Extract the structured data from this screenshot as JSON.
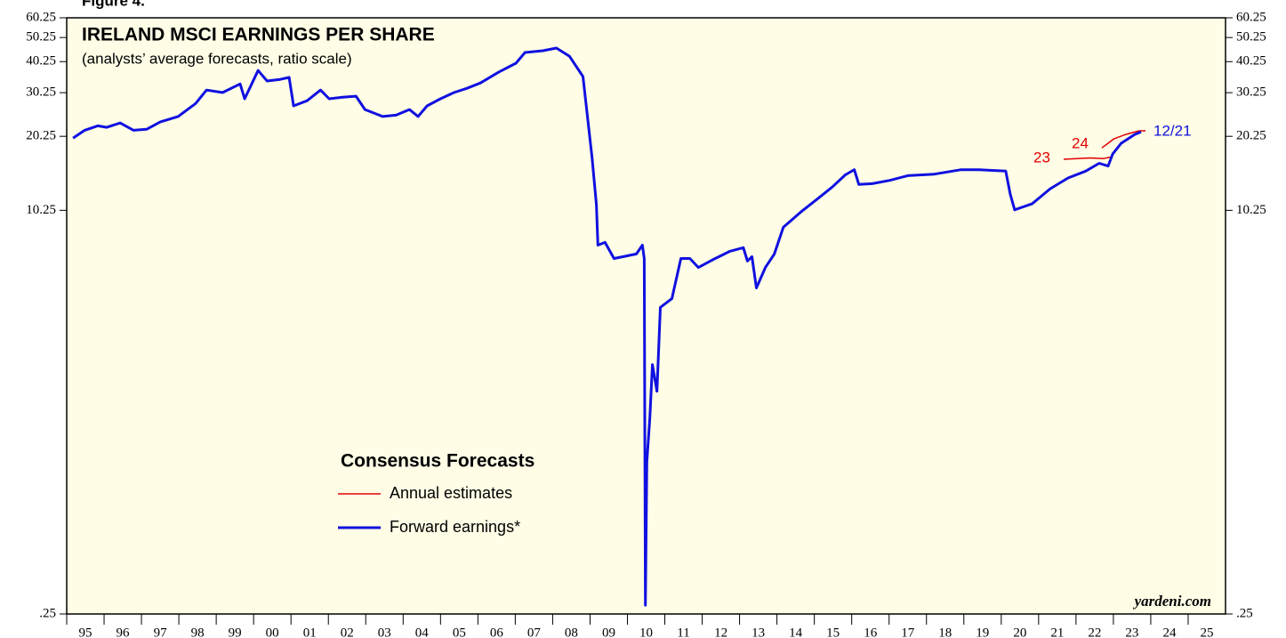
{
  "chart_data": {
    "type": "line",
    "figure_label": "Figure 4.",
    "title": "IRELAND MSCI EARNINGS PER SHARE",
    "subtitle": "(analysts’ average forecasts, ratio scale)",
    "legend_title": "Consensus Forecasts",
    "source": "yardeni.com",
    "log_scale": true,
    "background": "#fffde6",
    "xlim": [
      1995,
      2026
    ],
    "xticks": [
      {
        "value": 1995.5,
        "label": "95"
      },
      {
        "value": 1996.5,
        "label": "96"
      },
      {
        "value": 1997.5,
        "label": "97"
      },
      {
        "value": 1998.5,
        "label": "98"
      },
      {
        "value": 1999.5,
        "label": "99"
      },
      {
        "value": 2000.5,
        "label": "00"
      },
      {
        "value": 2001.5,
        "label": "01"
      },
      {
        "value": 2002.5,
        "label": "02"
      },
      {
        "value": 2003.5,
        "label": "03"
      },
      {
        "value": 2004.5,
        "label": "04"
      },
      {
        "value": 2005.5,
        "label": "05"
      },
      {
        "value": 2006.5,
        "label": "06"
      },
      {
        "value": 2007.5,
        "label": "07"
      },
      {
        "value": 2008.5,
        "label": "08"
      },
      {
        "value": 2009.5,
        "label": "09"
      },
      {
        "value": 2010.5,
        "label": "10"
      },
      {
        "value": 2011.5,
        "label": "11"
      },
      {
        "value": 2012.5,
        "label": "12"
      },
      {
        "value": 2013.5,
        "label": "13"
      },
      {
        "value": 2014.5,
        "label": "14"
      },
      {
        "value": 2015.5,
        "label": "15"
      },
      {
        "value": 2016.5,
        "label": "16"
      },
      {
        "value": 2017.5,
        "label": "17"
      },
      {
        "value": 2018.5,
        "label": "18"
      },
      {
        "value": 2019.5,
        "label": "19"
      },
      {
        "value": 2020.5,
        "label": "20"
      },
      {
        "value": 2021.5,
        "label": "21"
      },
      {
        "value": 2022.5,
        "label": "22"
      },
      {
        "value": 2023.5,
        "label": "23"
      },
      {
        "value": 2024.5,
        "label": "24"
      },
      {
        "value": 2025.5,
        "label": "25"
      }
    ],
    "ylim": [
      0.25,
      60.25
    ],
    "yticks": [
      {
        "value": 0.25,
        "label": ".25"
      },
      10.25,
      20.25,
      30.25,
      40.25,
      50.25,
      60.25
    ],
    "annotations": [
      {
        "text": "23",
        "color": "#e00000"
      },
      {
        "text": "24",
        "color": "#e00000"
      },
      {
        "text": "12/21",
        "color": "#1010e0"
      }
    ],
    "series": [
      {
        "name": "Annual estimates",
        "color": "#e00000",
        "width": 1.5,
        "x": [
          2021.67,
          2022.02,
          2022.38,
          2022.74,
          2022.98,
          null,
          2022.69,
          2022.86,
          2023.02,
          2023.33,
          2023.69,
          2023.86
        ],
        "values": [
          16.4,
          16.5,
          16.6,
          16.5,
          16.8,
          null,
          18.2,
          19.0,
          19.8,
          20.6,
          21.3,
          21.3
        ]
      },
      {
        "name": "Forward earnings*",
        "color": "#1010e0",
        "width": 3,
        "x": [
          1995.17,
          1995.48,
          1995.83,
          1996.07,
          1996.43,
          1996.79,
          1997.14,
          1997.5,
          1997.98,
          1998.45,
          1998.74,
          1999.17,
          1999.64,
          1999.76,
          2000.12,
          2000.36,
          2000.71,
          2000.95,
          2001.07,
          2001.43,
          2001.79,
          2002.02,
          2002.38,
          2002.74,
          2002.98,
          2003.45,
          2003.81,
          2004.17,
          2004.4,
          2004.64,
          2005.0,
          2005.36,
          2005.71,
          2006.07,
          2006.55,
          2007.02,
          2007.26,
          2007.74,
          2008.1,
          2008.45,
          2008.81,
          2009.05,
          2009.17,
          2009.21,
          2009.4,
          2009.64,
          2009.88,
          2010.24,
          2010.4,
          2010.45,
          2010.48,
          2010.52,
          2010.6,
          2010.67,
          2010.79,
          2010.88,
          2011.19,
          2011.43,
          2011.67,
          2011.9,
          2012.26,
          2012.74,
          2013.1,
          2013.21,
          2013.33,
          2013.45,
          2013.69,
          2013.93,
          2014.17,
          2014.64,
          2015.12,
          2015.48,
          2015.83,
          2016.07,
          2016.19,
          2016.55,
          2017.02,
          2017.5,
          2018.21,
          2018.93,
          2019.4,
          2020.12,
          2020.24,
          2020.36,
          2020.83,
          2021.31,
          2021.79,
          2022.26,
          2022.62,
          2022.86,
          2022.98,
          2023.21,
          2023.57,
          2023.74
        ],
        "values": [
          19.9,
          21.4,
          22.3,
          22.0,
          22.9,
          21.4,
          21.6,
          23.1,
          24.3,
          27.4,
          31.0,
          30.3,
          32.8,
          28.6,
          37.1,
          33.7,
          34.2,
          34.8,
          26.8,
          28.1,
          31.0,
          28.6,
          29.0,
          29.3,
          25.9,
          24.3,
          24.6,
          25.9,
          24.3,
          26.8,
          28.6,
          30.3,
          31.5,
          33.1,
          36.5,
          39.7,
          43.8,
          44.5,
          45.6,
          42.3,
          35.1,
          16.8,
          10.8,
          7.44,
          7.63,
          6.58,
          6.69,
          6.86,
          7.44,
          6.58,
          0.271,
          1.01,
          1.52,
          2.48,
          1.94,
          4.2,
          4.55,
          6.58,
          6.58,
          6.06,
          6.48,
          7.03,
          7.27,
          6.43,
          6.69,
          5.02,
          6.06,
          6.86,
          8.77,
          10.1,
          11.5,
          12.7,
          14.2,
          14.9,
          13.0,
          13.1,
          13.5,
          14.1,
          14.3,
          14.9,
          14.9,
          14.7,
          11.9,
          10.3,
          10.9,
          12.5,
          13.8,
          14.7,
          15.8,
          15.4,
          17.2,
          19.0,
          20.6,
          21.1
        ]
      }
    ]
  }
}
